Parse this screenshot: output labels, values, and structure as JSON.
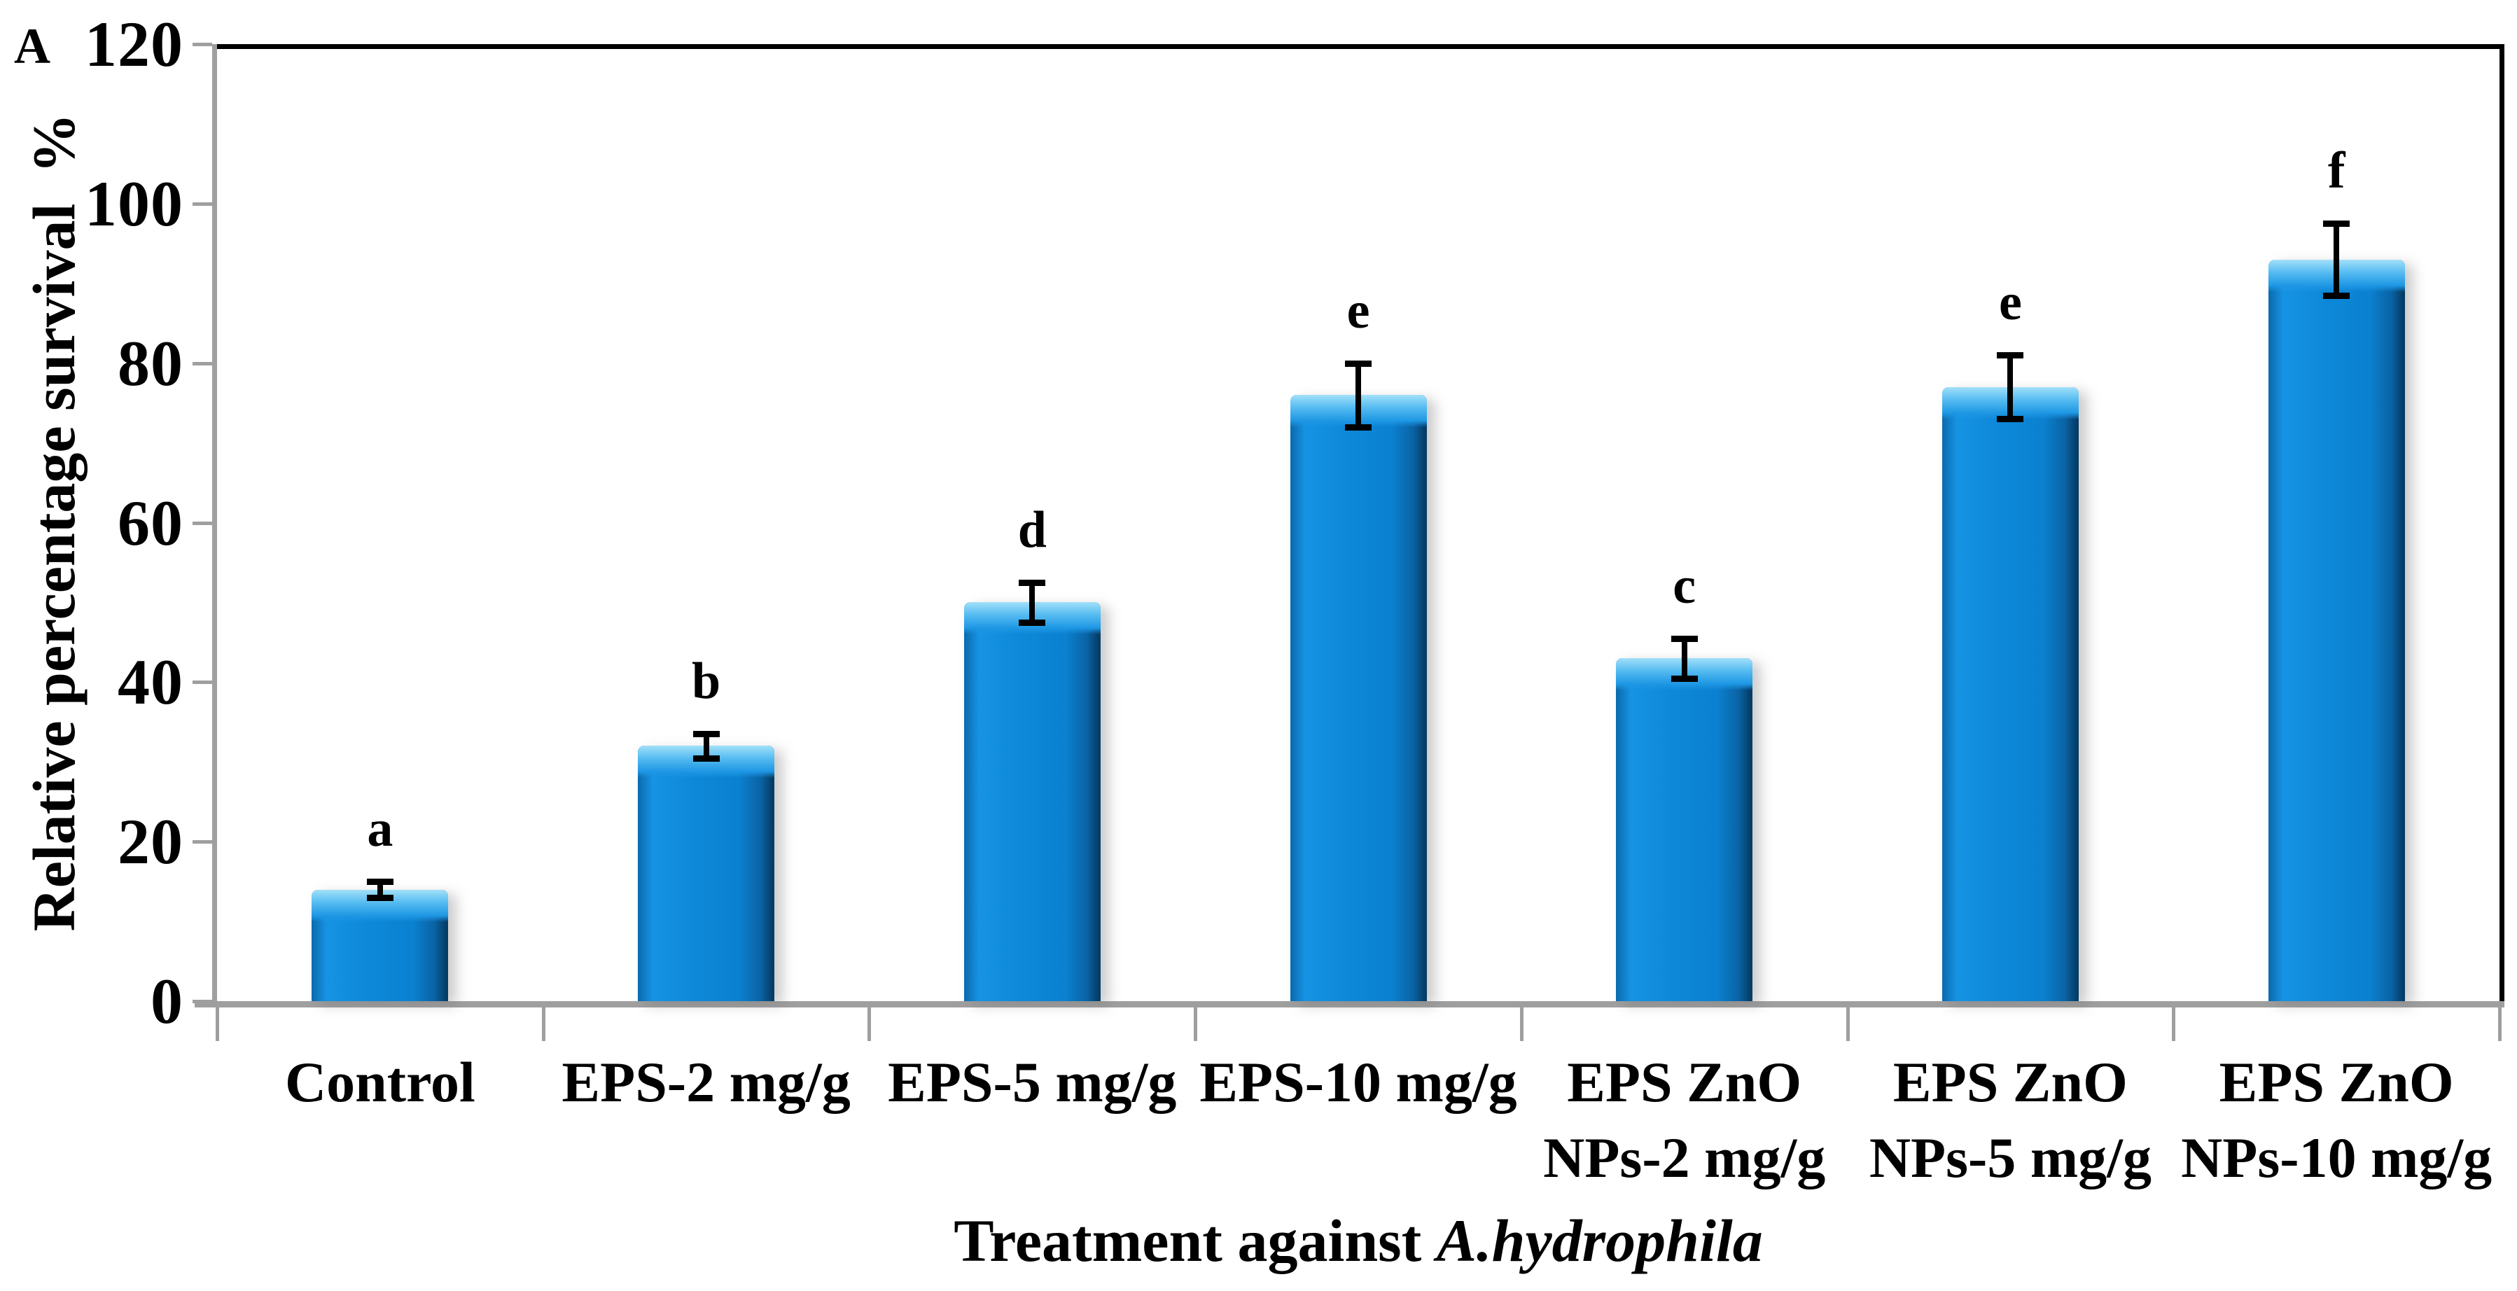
{
  "panel_label": "A",
  "chart_data": {
    "type": "bar",
    "title": "",
    "xlabel_main": "Treatment against ",
    "xlabel_italic": "A.hydrophila",
    "ylabel": "Relative percentage survival  %",
    "ylim": [
      0,
      120
    ],
    "yticks": [
      0,
      20,
      40,
      60,
      80,
      100,
      120
    ],
    "grid": "off",
    "legend": "none",
    "categories": [
      "Control",
      "EPS-2 mg/g",
      "EPS-5 mg/g",
      "EPS-10 mg/g",
      "EPS ZnO NPs-2 mg/g",
      "EPS ZnO NPs-5 mg/g",
      "EPS ZnO NPs-10 mg/g"
    ],
    "category_lines": [
      [
        "Control"
      ],
      [
        "EPS-2 mg/g"
      ],
      [
        "EPS-5 mg/g"
      ],
      [
        "EPS-10 mg/g"
      ],
      [
        "EPS ZnO",
        "NPs-2 mg/g"
      ],
      [
        "EPS ZnO",
        "NPs-5 mg/g"
      ],
      [
        "EPS ZnO",
        "NPs-10 mg/g"
      ]
    ],
    "values": [
      14,
      32,
      50,
      76,
      43,
      77,
      93
    ],
    "errors": [
      1,
      1.5,
      2.5,
      4,
      2.5,
      4,
      4.5
    ],
    "sig_letters": [
      "a",
      "b",
      "d",
      "e",
      "c",
      "e",
      "f"
    ],
    "colors": {
      "bar_main": "#0b84d4",
      "bar_highlight": "#55bbf1",
      "bar_dark_edge": "#063f6b",
      "axis": "#9f9f9f",
      "frame": "#000000",
      "error_bar": "#000000",
      "text": "#000000"
    }
  }
}
